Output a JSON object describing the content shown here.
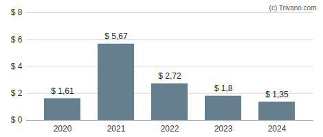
{
  "chart_data": {
    "type": "bar",
    "categories": [
      "2020",
      "2021",
      "2022",
      "2023",
      "2024"
    ],
    "values": [
      1.61,
      5.67,
      2.72,
      1.8,
      1.35
    ],
    "value_labels": [
      "$ 1,61",
      "$ 5,67",
      "$ 2,72",
      "$ 1,8",
      "$ 1,35"
    ],
    "data_labels": true,
    "color": "#667f8f",
    "ylim": [
      0,
      8
    ],
    "yticks": [
      {
        "value": 0,
        "label": "$ 0"
      },
      {
        "value": 2,
        "label": "$ 2"
      },
      {
        "value": 4,
        "label": "$ 4"
      },
      {
        "value": 6,
        "label": "$ 6"
      },
      {
        "value": 8,
        "label": "$ 8"
      }
    ],
    "grid": true,
    "annotations": [
      "(c) Trivano.com"
    ]
  }
}
